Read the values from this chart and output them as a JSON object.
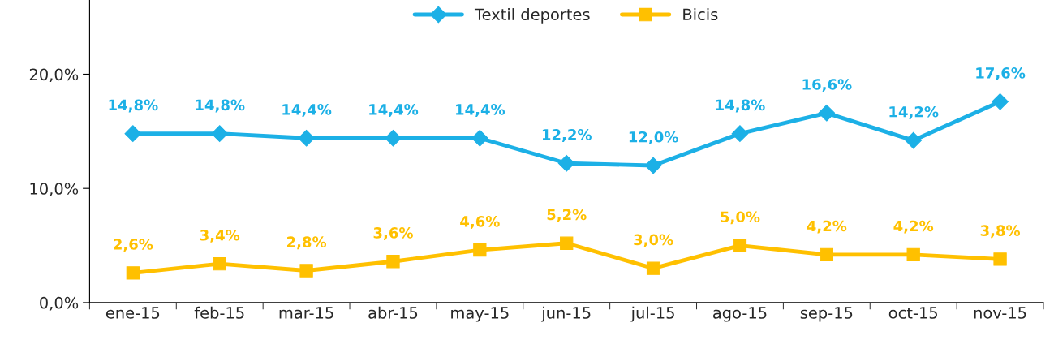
{
  "chart_data": {
    "type": "line",
    "categories": [
      "ene-15",
      "feb-15",
      "mar-15",
      "abr-15",
      "may-15",
      "jun-15",
      "jul-15",
      "ago-15",
      "sep-15",
      "oct-15",
      "nov-15"
    ],
    "series": [
      {
        "name": "Textil deportes",
        "color": "#1cb0e6",
        "marker": "diamond",
        "values": [
          14.8,
          14.8,
          14.4,
          14.4,
          14.4,
          12.2,
          12.0,
          14.8,
          16.6,
          14.2,
          17.6
        ],
        "value_labels": [
          "14,8%",
          "14,8%",
          "14,4%",
          "14,4%",
          "14,4%",
          "12,2%",
          "12,0%",
          "14,8%",
          "16,6%",
          "14,2%",
          "17,6%"
        ]
      },
      {
        "name": "Bicis",
        "color": "#ffc000",
        "marker": "square",
        "values": [
          2.6,
          3.4,
          2.8,
          3.6,
          4.6,
          5.2,
          3.0,
          5.0,
          4.2,
          4.2,
          3.8
        ],
        "value_labels": [
          "2,6%",
          "3,4%",
          "2,8%",
          "3,6%",
          "4,6%",
          "5,2%",
          "3,0%",
          "5,0%",
          "4,2%",
          "4,2%",
          "3,8%"
        ]
      }
    ],
    "ylim": [
      0,
      26.5
    ],
    "yticks": [
      {
        "value": 0,
        "label": "0,0%"
      },
      {
        "value": 10,
        "label": "10,0%"
      },
      {
        "value": 20,
        "label": "20,0%"
      }
    ],
    "grid": false,
    "legend": "top",
    "line_style": "solid"
  }
}
